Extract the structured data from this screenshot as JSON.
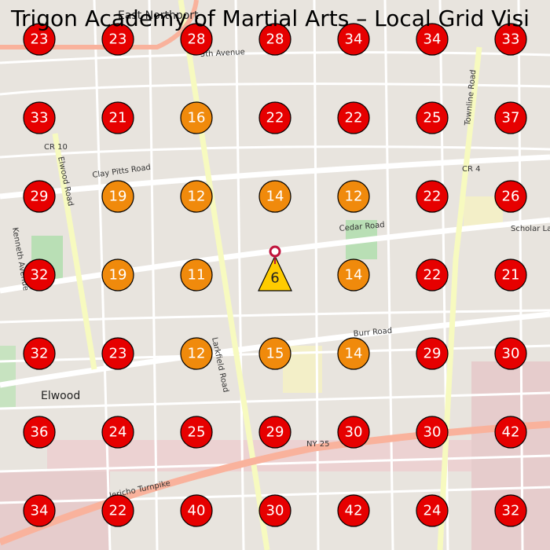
{
  "title": "Trigon Academy of Martial Arts – Local Grid Visi",
  "grid": {
    "rows": [
      [
        23,
        23,
        28,
        28,
        34,
        34,
        33
      ],
      [
        33,
        21,
        16,
        22,
        22,
        25,
        37
      ],
      [
        29,
        19,
        12,
        14,
        12,
        22,
        26
      ],
      [
        32,
        19,
        11,
        6,
        14,
        22,
        21
      ],
      [
        32,
        23,
        12,
        15,
        14,
        29,
        30
      ],
      [
        36,
        24,
        25,
        29,
        30,
        30,
        42
      ],
      [
        34,
        22,
        40,
        30,
        42,
        24,
        32
      ]
    ]
  },
  "map_labels": [
    "East Northport",
    "Elwood",
    "Cedar Road",
    "Burr Road",
    "Clay Pitts Road",
    "Larkfield Road",
    "Elwood Road",
    "Jericho Turnpike",
    "NY 25",
    "CR 10",
    "CR 4",
    "5th Avenue",
    "Scholar Lane",
    "Kenneth Avenue",
    "Townline Road"
  ]
}
